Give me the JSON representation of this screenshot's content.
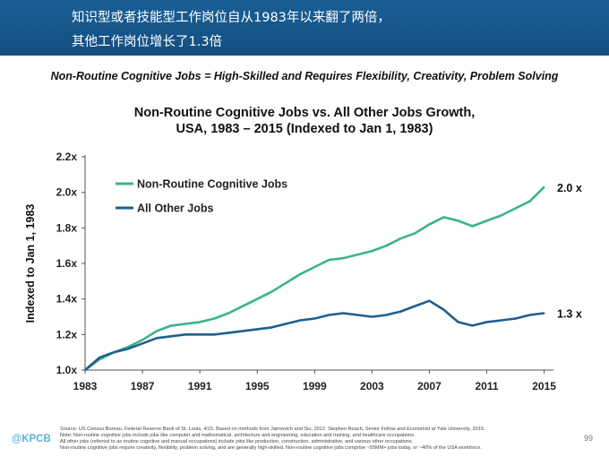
{
  "banner": {
    "line1": "知识型或者技能型工作岗位自从1983年以来翻了两倍，",
    "line2": "其他工作岗位增长了1.3倍"
  },
  "subhead": "Non-Routine Cognitive Jobs = High-Skilled and Requires Flexibility, Creativity, Problem Solving",
  "chart_data": {
    "type": "line",
    "title_line1": "Non-Routine Cognitive Jobs vs. All Other Jobs Growth,",
    "title_line2": "USA, 1983 – 2015 (Indexed to Jan 1, 1983)",
    "xlabel": "",
    "ylabel": "Indexed to Jan 1, 1983",
    "x_ticks": [
      "1983",
      "1987",
      "1991",
      "1995",
      "1999",
      "2003",
      "2007",
      "2011",
      "2015"
    ],
    "y_ticks": [
      "1.0x",
      "1.2x",
      "1.4x",
      "1.6x",
      "1.8x",
      "2.0x",
      "2.2x"
    ],
    "xlim": [
      1983,
      2015.4
    ],
    "ylim": [
      1.0,
      2.2
    ],
    "grid": false,
    "legend_position": "top-left",
    "series": [
      {
        "name": "Non-Routine Cognitive Jobs",
        "color": "#3cb38a",
        "end_label": "2.0 x",
        "x": [
          1983,
          1984,
          1985,
          1986,
          1987,
          1988,
          1989,
          1990,
          1991,
          1992,
          1993,
          1994,
          1995,
          1996,
          1997,
          1998,
          1999,
          2000,
          2001,
          2002,
          2003,
          2004,
          2005,
          2006,
          2007,
          2008,
          2009,
          2010,
          2011,
          2012,
          2013,
          2014,
          2015
        ],
        "values": [
          1.0,
          1.06,
          1.1,
          1.13,
          1.17,
          1.22,
          1.25,
          1.26,
          1.27,
          1.29,
          1.32,
          1.36,
          1.4,
          1.44,
          1.49,
          1.54,
          1.58,
          1.62,
          1.63,
          1.65,
          1.67,
          1.7,
          1.74,
          1.77,
          1.82,
          1.86,
          1.84,
          1.81,
          1.84,
          1.87,
          1.91,
          1.95,
          2.03
        ]
      },
      {
        "name": "All Other Jobs",
        "color": "#1f5f8e",
        "end_label": "1.3 x",
        "x": [
          1983,
          1984,
          1985,
          1986,
          1987,
          1988,
          1989,
          1990,
          1991,
          1992,
          1993,
          1994,
          1995,
          1996,
          1997,
          1998,
          1999,
          2000,
          2001,
          2002,
          2003,
          2004,
          2005,
          2006,
          2007,
          2008,
          2009,
          2010,
          2011,
          2012,
          2013,
          2014,
          2015
        ],
        "values": [
          1.0,
          1.07,
          1.1,
          1.12,
          1.15,
          1.18,
          1.19,
          1.2,
          1.2,
          1.2,
          1.21,
          1.22,
          1.23,
          1.24,
          1.26,
          1.28,
          1.29,
          1.31,
          1.32,
          1.31,
          1.3,
          1.31,
          1.33,
          1.36,
          1.39,
          1.34,
          1.27,
          1.25,
          1.27,
          1.28,
          1.29,
          1.31,
          1.32
        ]
      }
    ]
  },
  "source_lines": [
    "Source: US Census Bureau, Federal Reserve Bank of St. Louis, 4/15. Based on methods from Jaimovich and Siu, 2012. Stephen Roach, Senior Fellow and Economist at Yale University, 2015.",
    "Note: Non-routine cognitive jobs include jobs like computer and mathematical, architecture and engineering, education and training, and healthcare occupations.",
    "All other jobs (referred to as routine cognitive and manual occupations) include jobs like production, construction, administrative, and various other occupations.",
    "Non-routine cognitive jobs require creativity, flexibility, problem solving, and are generally high-skilled. Non-routine cognitive jobs comprise ~55MM+ jobs today, or ~40% of the USA workforce."
  ],
  "logo": "@KPCB",
  "page_number": "99"
}
